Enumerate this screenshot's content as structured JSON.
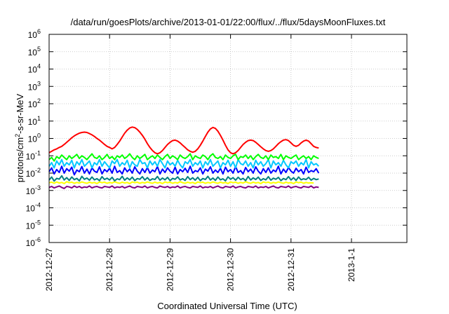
{
  "chart_data": {
    "type": "line",
    "title": "/data/run/goesPlots/archive/2013-01-01/22:00/flux/../flux/5daysMoonFluxes.txt",
    "xlabel": "Coordinated Universal Time (UTC)",
    "ylabel": {
      "base": "protons/cm",
      "sup": "2",
      "rest": "-s-sr-MeV"
    },
    "y_scale": "log",
    "ylim": [
      1e-06,
      1000000.0
    ],
    "y_ticks": [
      {
        "exp": "-6",
        "value": 1e-06
      },
      {
        "exp": "-5",
        "value": 1e-05
      },
      {
        "exp": "-4",
        "value": 0.0001
      },
      {
        "exp": "-3",
        "value": 0.001
      },
      {
        "exp": "-2",
        "value": 0.01
      },
      {
        "exp": "-1",
        "value": 0.1
      },
      {
        "exp": "0",
        "value": 1
      },
      {
        "exp": "1",
        "value": 10
      },
      {
        "exp": "2",
        "value": 100
      },
      {
        "exp": "3",
        "value": 1000
      },
      {
        "exp": "4",
        "value": 10000
      },
      {
        "exp": "5",
        "value": 100000
      },
      {
        "exp": "6",
        "value": 1000000
      }
    ],
    "y_tick_base": "10",
    "x_ticks": [
      "2012-12-27",
      "2012-12-28",
      "2012-12-29",
      "2012-12-30",
      "2012-12-31",
      "2013-1-1"
    ],
    "xlim": [
      "2012-12-27 00:00",
      "2013-01-01 22:00"
    ],
    "grid": true,
    "legend": "none",
    "sample_interval_hours": 1,
    "series": [
      {
        "color": "#ff0000",
        "values": [
          0.15,
          0.18,
          0.22,
          0.25,
          0.3,
          0.35,
          0.45,
          0.6,
          0.8,
          1.1,
          1.4,
          1.7,
          2.0,
          2.2,
          2.3,
          2.2,
          1.9,
          1.6,
          1.3,
          1.0,
          0.8,
          0.6,
          0.45,
          0.35,
          0.3,
          0.25,
          0.3,
          0.45,
          0.7,
          1.2,
          2.0,
          3.0,
          4.0,
          4.5,
          4.2,
          3.3,
          2.3,
          1.5,
          0.9,
          0.5,
          0.3,
          0.2,
          0.15,
          0.13,
          0.15,
          0.2,
          0.3,
          0.45,
          0.6,
          0.75,
          0.8,
          0.7,
          0.55,
          0.4,
          0.3,
          0.22,
          0.18,
          0.16,
          0.18,
          0.25,
          0.4,
          0.7,
          1.3,
          2.3,
          3.5,
          4.3,
          3.8,
          2.6,
          1.5,
          0.8,
          0.4,
          0.22,
          0.15,
          0.13,
          0.15,
          0.2,
          0.3,
          0.45,
          0.6,
          0.75,
          0.8,
          0.75,
          0.6,
          0.45,
          0.33,
          0.25,
          0.2,
          0.18,
          0.2,
          0.25,
          0.35,
          0.5,
          0.65,
          0.8,
          0.85,
          0.75,
          0.55,
          0.4,
          0.35,
          0.4,
          0.55,
          0.7,
          0.8,
          0.7,
          0.5,
          0.35,
          0.3,
          0.28
        ]
      },
      {
        "color": "#00ff00",
        "values": [
          0.06,
          0.08,
          0.05,
          0.09,
          0.07,
          0.11,
          0.08,
          0.06,
          0.1,
          0.07,
          0.09,
          0.12,
          0.07,
          0.1,
          0.08,
          0.06,
          0.09,
          0.13,
          0.08,
          0.07,
          0.1,
          0.06,
          0.08,
          0.12,
          0.07,
          0.09,
          0.06,
          0.1,
          0.08,
          0.11,
          0.07,
          0.09,
          0.13,
          0.08,
          0.06,
          0.1,
          0.07,
          0.09,
          0.12,
          0.06,
          0.08,
          0.1,
          0.07,
          0.11,
          0.08,
          0.06,
          0.09,
          0.12,
          0.07,
          0.1,
          0.08,
          0.06,
          0.11,
          0.08,
          0.07,
          0.09,
          0.13,
          0.06,
          0.1,
          0.08,
          0.07,
          0.11,
          0.09,
          0.06,
          0.1,
          0.13,
          0.08,
          0.07,
          0.09,
          0.06,
          0.11,
          0.08,
          0.07,
          0.1,
          0.12,
          0.06,
          0.09,
          0.08,
          0.11,
          0.07,
          0.1,
          0.06,
          0.09,
          0.12,
          0.08,
          0.07,
          0.1,
          0.06,
          0.11,
          0.08,
          0.09,
          0.07,
          0.12,
          0.06,
          0.1,
          0.08,
          0.07,
          0.09,
          0.11,
          0.06,
          0.08,
          0.1,
          0.07,
          0.09,
          0.06,
          0.1,
          0.08,
          0.07
        ]
      },
      {
        "color": "#00c8ff",
        "values": [
          0.025,
          0.04,
          0.02,
          0.05,
          0.03,
          0.06,
          0.025,
          0.04,
          0.03,
          0.055,
          0.02,
          0.045,
          0.03,
          0.06,
          0.025,
          0.035,
          0.05,
          0.02,
          0.04,
          0.03,
          0.06,
          0.025,
          0.045,
          0.03,
          0.02,
          0.05,
          0.035,
          0.06,
          0.025,
          0.04,
          0.03,
          0.055,
          0.02,
          0.045,
          0.03,
          0.025,
          0.06,
          0.035,
          0.04,
          0.02,
          0.05,
          0.03,
          0.045,
          0.025,
          0.06,
          0.035,
          0.02,
          0.05,
          0.03,
          0.04,
          0.025,
          0.055,
          0.03,
          0.02,
          0.045,
          0.035,
          0.06,
          0.025,
          0.04,
          0.03,
          0.05,
          0.02,
          0.045,
          0.03,
          0.06,
          0.025,
          0.035,
          0.05,
          0.02,
          0.04,
          0.03,
          0.055,
          0.025,
          0.045,
          0.02,
          0.06,
          0.035,
          0.03,
          0.05,
          0.025,
          0.04,
          0.02,
          0.055,
          0.03,
          0.045,
          0.025,
          0.035,
          0.06,
          0.02,
          0.05,
          0.03,
          0.04,
          0.025,
          0.055,
          0.03,
          0.02,
          0.045,
          0.035,
          0.05,
          0.025,
          0.04,
          0.03,
          0.06,
          0.02,
          0.045,
          0.03,
          0.035,
          0.025
        ]
      },
      {
        "color": "#0000ff",
        "values": [
          0.012,
          0.02,
          0.009,
          0.016,
          0.011,
          0.025,
          0.01,
          0.018,
          0.013,
          0.022,
          0.008,
          0.015,
          0.012,
          0.024,
          0.01,
          0.017,
          0.009,
          0.02,
          0.013,
          0.011,
          0.023,
          0.009,
          0.016,
          0.012,
          0.019,
          0.01,
          0.025,
          0.011,
          0.014,
          0.009,
          0.02,
          0.012,
          0.017,
          0.01,
          0.023,
          0.013,
          0.009,
          0.018,
          0.011,
          0.021,
          0.01,
          0.015,
          0.012,
          0.024,
          0.009,
          0.017,
          0.011,
          0.02,
          0.013,
          0.01,
          0.022,
          0.009,
          0.016,
          0.012,
          0.019,
          0.011,
          0.025,
          0.01,
          0.014,
          0.012,
          0.02,
          0.009,
          0.017,
          0.013,
          0.023,
          0.01,
          0.015,
          0.011,
          0.019,
          0.009,
          0.022,
          0.012,
          0.016,
          0.01,
          0.024,
          0.011,
          0.014,
          0.009,
          0.021,
          0.012,
          0.017,
          0.01,
          0.023,
          0.013,
          0.009,
          0.018,
          0.011,
          0.02,
          0.01,
          0.015,
          0.012,
          0.025,
          0.009,
          0.017,
          0.011,
          0.021,
          0.013,
          0.01,
          0.019,
          0.012,
          0.016,
          0.009,
          0.022,
          0.011,
          0.014,
          0.012,
          0.018,
          0.01
        ]
      },
      {
        "color": "#008080",
        "values": [
          0.004,
          0.006,
          0.0035,
          0.005,
          0.0045,
          0.007,
          0.004,
          0.0055,
          0.0038,
          0.006,
          0.0042,
          0.005,
          0.0036,
          0.0065,
          0.0044,
          0.0052,
          0.0039,
          0.006,
          0.0041,
          0.0048,
          0.0037,
          0.0062,
          0.0043,
          0.0051,
          0.004,
          0.0058,
          0.0036,
          0.0047,
          0.0042,
          0.0066,
          0.0039,
          0.0053,
          0.0041,
          0.0059,
          0.0037,
          0.0049,
          0.0044,
          0.0062,
          0.004,
          0.0055,
          0.0038,
          0.0047,
          0.0043,
          0.0064,
          0.0039,
          0.0052,
          0.0041,
          0.0057,
          0.0037,
          0.005,
          0.0044,
          0.0061,
          0.004,
          0.0048,
          0.0038,
          0.0063,
          0.0042,
          0.0054,
          0.0039,
          0.0058,
          0.0037,
          0.0049,
          0.0043,
          0.0065,
          0.004,
          0.0052,
          0.0038,
          0.006,
          0.0041,
          0.0047,
          0.0036,
          0.0061,
          0.0044,
          0.0055,
          0.0039,
          0.0058,
          0.0042,
          0.005,
          0.0037,
          0.0064,
          0.004,
          0.0053,
          0.0043,
          0.0059,
          0.0038,
          0.0048,
          0.0041,
          0.0062,
          0.0039,
          0.0051,
          0.0044,
          0.0057,
          0.0037,
          0.0049,
          0.0042,
          0.0063,
          0.004,
          0.0054,
          0.0038,
          0.006,
          0.0041,
          0.0047,
          0.0043,
          0.0058,
          0.0039,
          0.005,
          0.0042,
          0.0046
        ]
      },
      {
        "color": "#ffff00",
        "values": [
          0.0028,
          0.003,
          0.0026,
          0.0031,
          0.0027,
          0.0029,
          0.0025,
          0.0032,
          0.0028,
          0.003,
          0.0026,
          0.0029,
          0.0027,
          0.0031,
          0.0028,
          0.0026,
          0.003,
          0.0027,
          0.0029,
          0.0025,
          0.0031,
          0.0028,
          0.003,
          0.0026,
          0.0029,
          0.0027,
          0.0032,
          0.0028,
          0.0026,
          0.003,
          0.0027,
          0.0029,
          0.0025,
          0.0031,
          0.0028,
          0.003,
          0.0026,
          0.0029,
          0.0027,
          0.0031,
          0.0028,
          0.0026,
          0.003,
          0.0027,
          0.0029,
          0.0025,
          0.0031,
          0.0028,
          0.003,
          0.0026,
          0.0029,
          0.0027,
          0.0032,
          0.0028,
          0.0026,
          0.003,
          0.0027,
          0.0029,
          0.0025,
          0.0031,
          0.0028,
          0.003,
          0.0026,
          0.0029,
          0.0027,
          0.0031,
          0.0028,
          0.0026,
          0.003,
          0.0027,
          0.0029,
          0.0025,
          0.0031,
          0.0028,
          0.003,
          0.0026,
          0.0029,
          0.0027,
          0.0032,
          0.0028,
          0.0026,
          0.003,
          0.0027,
          0.0029,
          0.0025,
          0.0031,
          0.0028,
          0.003,
          0.0026,
          0.0029,
          0.0027,
          0.0031,
          0.0028,
          0.0026,
          0.003,
          0.0027,
          0.0029,
          0.0025,
          0.0031,
          0.0028,
          0.003,
          0.0026,
          0.0029,
          0.0027,
          0.0028,
          0.0027
        ]
      },
      {
        "color": "#800080",
        "values": [
          0.0015,
          0.0017,
          0.0014,
          0.0016,
          0.0018,
          0.0015,
          0.0013,
          0.0017,
          0.0016,
          0.0014,
          0.0018,
          0.0015,
          0.0017,
          0.0014,
          0.0016,
          0.0015,
          0.0018,
          0.0014,
          0.0016,
          0.0017,
          0.0015,
          0.0014,
          0.0017,
          0.0016,
          0.0015,
          0.0018,
          0.0014,
          0.0016,
          0.0015,
          0.0017,
          0.0014,
          0.0016,
          0.0018,
          0.0015,
          0.0014,
          0.0017,
          0.0016,
          0.0015,
          0.0018,
          0.0014,
          0.0016,
          0.0017,
          0.0015,
          0.0014,
          0.0018,
          0.0016,
          0.0015,
          0.0017,
          0.0014,
          0.0016,
          0.0015,
          0.0018,
          0.0014,
          0.0016,
          0.0017,
          0.0015,
          0.0014,
          0.0017,
          0.0016,
          0.0015,
          0.0018,
          0.0014,
          0.0016,
          0.0015,
          0.0017,
          0.0014,
          0.0016,
          0.0018,
          0.0015,
          0.0014,
          0.0017,
          0.0016,
          0.0015,
          0.0018,
          0.0014,
          0.0016,
          0.0017,
          0.0015,
          0.0014,
          0.0017,
          0.0016,
          0.0015,
          0.0018,
          0.0014,
          0.0016,
          0.0015,
          0.0017,
          0.0014,
          0.0016,
          0.0018,
          0.0015,
          0.0014,
          0.0017,
          0.0016,
          0.0015,
          0.0018,
          0.0014,
          0.0016,
          0.0017,
          0.0015,
          0.0014,
          0.0017,
          0.0016,
          0.0015,
          0.0018,
          0.0014,
          0.0016,
          0.0015
        ]
      }
    ]
  }
}
